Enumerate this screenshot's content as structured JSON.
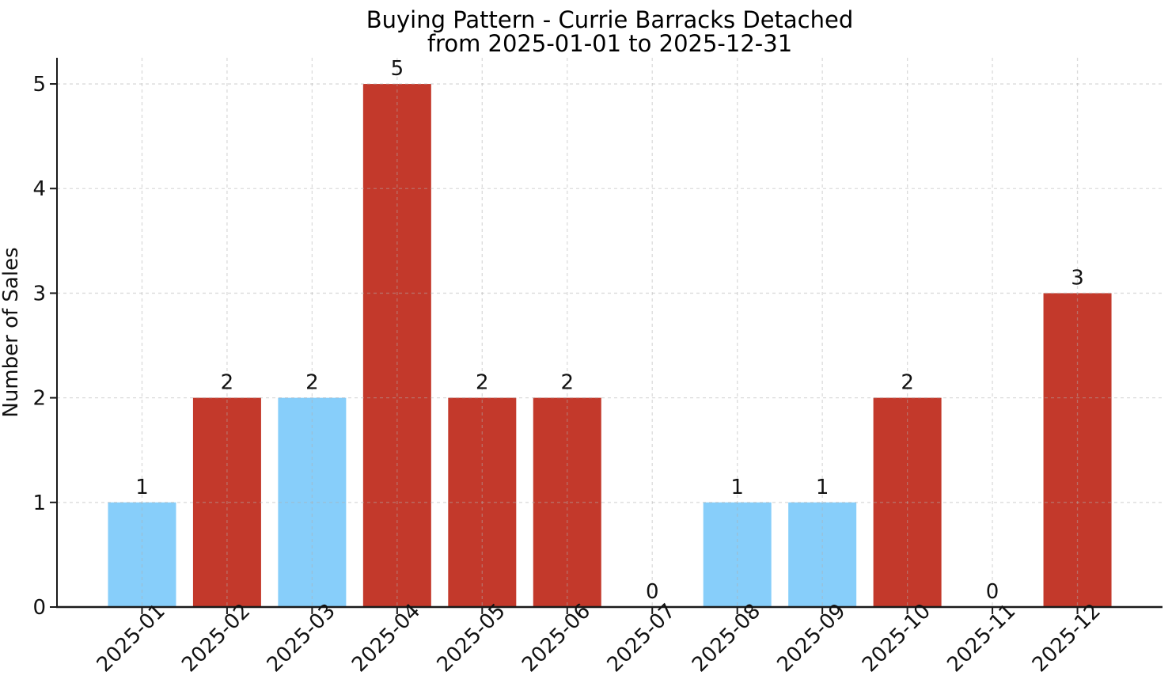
{
  "chart_data": {
    "type": "bar",
    "title": "Buying Pattern - Currie Barracks Detached from 2025-01-01 to 2025-12-31",
    "title_line1": "Buying Pattern - Currie Barracks Detached",
    "title_line2": "from 2025-01-01 to 2025-12-31",
    "xlabel": "",
    "ylabel": "Number of Sales",
    "categories": [
      "2025-01",
      "2025-02",
      "2025-03",
      "2025-04",
      "2025-05",
      "2025-06",
      "2025-07",
      "2025-08",
      "2025-09",
      "2025-10",
      "2025-11",
      "2025-12"
    ],
    "values": [
      1,
      2,
      2,
      5,
      2,
      2,
      0,
      1,
      1,
      2,
      0,
      3
    ],
    "bar_colors": [
      "#87CEFA",
      "#C3392B",
      "#87CEFA",
      "#C3392B",
      "#C3392B",
      "#C3392B",
      null,
      "#87CEFA",
      "#87CEFA",
      "#C3392B",
      null,
      "#C3392B"
    ],
    "value_labels_shown": true,
    "yticks": [
      0,
      1,
      2,
      3,
      4,
      5
    ],
    "ylim": [
      0,
      5.25
    ],
    "grid": {
      "show": true,
      "linestyle": "dashed",
      "axes": "both",
      "above_bars": true
    },
    "legend": {
      "show": false
    },
    "colors": {
      "bar_blue": "#87CEFA",
      "bar_red": "#C3392B",
      "spine": "#1a1a1a",
      "grid": "#b0b0b0",
      "text": "#111111",
      "background": "#ffffff"
    }
  }
}
